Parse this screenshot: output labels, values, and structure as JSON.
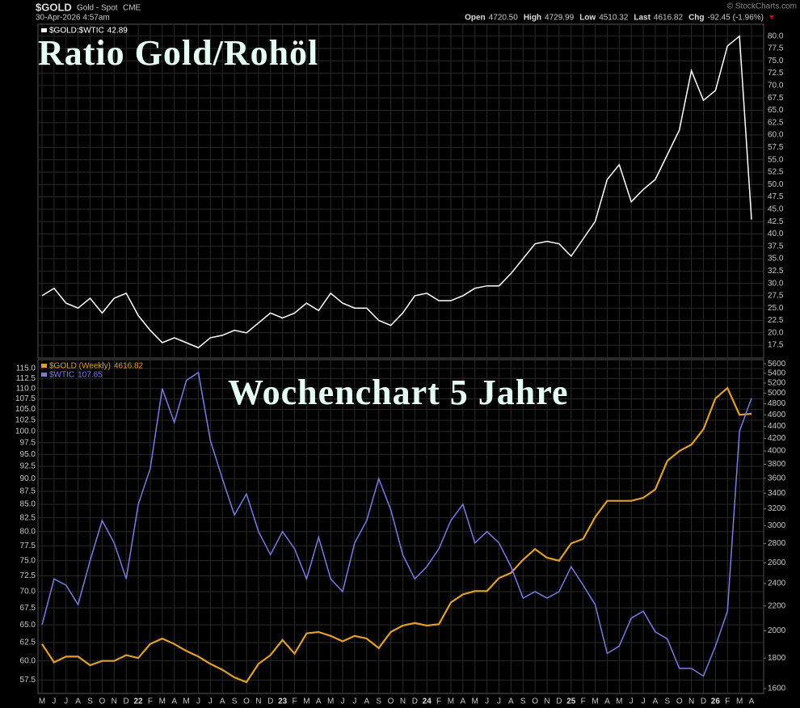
{
  "header": {
    "symbol": "$GOLD",
    "name": "Gold - Spot",
    "exchange": "CME",
    "date": "30-Apr-2026 4:57am",
    "source": "© StockCharts.com",
    "fields": [
      {
        "label": "Open",
        "value": "4720.50"
      },
      {
        "label": "High",
        "value": "4729.99"
      },
      {
        "label": "Low",
        "value": "4510.32"
      },
      {
        "label": "Last",
        "value": "4616.82"
      },
      {
        "label": "Chg",
        "value": "-92.45 (-1.96%)"
      }
    ]
  },
  "chart_data": [
    {
      "type": "line",
      "title": "Ratio Gold/Rohöl",
      "series": [
        {
          "name": "$GOLD:$WTIC",
          "color": "#ffffff",
          "values": [
            27.5,
            29,
            26,
            25,
            27,
            24,
            27,
            28,
            23.5,
            20.5,
            18,
            19,
            18,
            17,
            19,
            19.5,
            20.5,
            20,
            22,
            24,
            23,
            24,
            26,
            24.5,
            28,
            26,
            25,
            25,
            22.5,
            21.5,
            24,
            27.5,
            28,
            26.5,
            26.5,
            27.5,
            29,
            29.5,
            29.5,
            32,
            35,
            38,
            38.5,
            38,
            35.5,
            39,
            42.5,
            51,
            54,
            46.5,
            49,
            51,
            56,
            61,
            73,
            67,
            69,
            78,
            80,
            42.89
          ]
        }
      ],
      "ylim": [
        14.9,
        82.4
      ],
      "yticks": [
        17.5,
        {
          "value": 20,
          "label": "20.0"
        },
        22.5,
        {
          "value": 25,
          "label": "25.0"
        },
        27.5,
        {
          "value": 30,
          "label": "30.0"
        },
        32.5,
        {
          "value": 35,
          "label": "35.0"
        },
        37.5,
        {
          "value": 40,
          "label": "40.0"
        },
        42.5,
        {
          "value": 45,
          "label": "45.0"
        },
        47.5,
        {
          "value": 50,
          "label": "50.0"
        },
        52.5,
        {
          "value": 55,
          "label": "55.0"
        },
        57.5,
        {
          "value": 60,
          "label": "60.0"
        },
        62.5,
        {
          "value": 65,
          "label": "65.0"
        },
        67.5,
        {
          "value": 70,
          "label": "70.0"
        },
        72.5,
        {
          "value": 75,
          "label": "75.0"
        },
        77.5,
        {
          "value": 80,
          "label": "80.0"
        }
      ],
      "grid": true
    },
    {
      "type": "line",
      "title": "Wochenchart 5 Jahre",
      "categories": [
        "M",
        "J",
        "J",
        "A",
        "S",
        "O",
        "N",
        "D",
        "22",
        "F",
        "M",
        "A",
        "M",
        "J",
        "J",
        "A",
        "S",
        "O",
        "N",
        "D",
        "23",
        "F",
        "M",
        "A",
        "M",
        "J",
        "J",
        "A",
        "S",
        "O",
        "N",
        "D",
        "24",
        "F",
        "M",
        "A",
        "M",
        "J",
        "J",
        "A",
        "S",
        "O",
        "N",
        "D",
        "25",
        "F",
        "M",
        "A",
        "M",
        "J",
        "J",
        "A",
        "S",
        "O",
        "N",
        "D",
        "26",
        "F",
        "M",
        "A"
      ],
      "series": [
        {
          "name": "$GOLD (Weekly)",
          "color": "#e0a030",
          "axis": "y2",
          "values": [
            1900,
            1770,
            1810,
            1810,
            1750,
            1780,
            1780,
            1820,
            1800,
            1900,
            1940,
            1900,
            1850,
            1810,
            1760,
            1720,
            1670,
            1640,
            1760,
            1820,
            1930,
            1830,
            1980,
            1990,
            1960,
            1920,
            1960,
            1940,
            1870,
            1990,
            2040,
            2060,
            2040,
            2050,
            2230,
            2300,
            2330,
            2330,
            2450,
            2500,
            2630,
            2740,
            2650,
            2620,
            2800,
            2850,
            3100,
            3300,
            3300,
            3300,
            3340,
            3450,
            3850,
            4000,
            4100,
            4350,
            4900,
            5100,
            4600,
            4616.82
          ]
        },
        {
          "name": "$WTIC",
          "color": "#7b7be0",
          "values": [
            65,
            72,
            71,
            68,
            75,
            82,
            78,
            72,
            85,
            92,
            110,
            102,
            112,
            114,
            98,
            90,
            83,
            87,
            80,
            76,
            80,
            77,
            72,
            79,
            72,
            70,
            78,
            82,
            90,
            84,
            76,
            72,
            74,
            77,
            82,
            85,
            78,
            80,
            78,
            74,
            69,
            70,
            69,
            70,
            74,
            71,
            68,
            61,
            62,
            66,
            67,
            64,
            63,
            59,
            59,
            58,
            62,
            67,
            100,
            107.65
          ]
        }
      ],
      "yscale": "log",
      "ylim": [
        55.8,
        117.3
      ],
      "yticks": [
        57.5,
        {
          "value": 60,
          "label": "60.0"
        },
        62.5,
        {
          "value": 65,
          "label": "65.0"
        },
        67.5,
        {
          "value": 70,
          "label": "70.0"
        },
        72.5,
        {
          "value": 75,
          "label": "75.0"
        },
        77.5,
        {
          "value": 80,
          "label": "80.0"
        },
        82.5,
        {
          "value": 85,
          "label": "85.0"
        },
        87.5,
        {
          "value": 90,
          "label": "90.0"
        },
        92.5,
        {
          "value": 95,
          "label": "95.0"
        },
        97.5,
        {
          "value": 100,
          "label": "100.0"
        },
        102.5,
        {
          "value": 105,
          "label": "105.0"
        },
        107.5,
        {
          "value": 110,
          "label": "110.0"
        },
        112.5,
        {
          "value": 115,
          "label": "115.0"
        }
      ],
      "y2lim": [
        1570,
        5690
      ],
      "y2ticks": [
        1600,
        1800,
        2000,
        2200,
        2400,
        2600,
        2800,
        3000,
        3200,
        3400,
        3600,
        3800,
        4000,
        4200,
        4400,
        4600,
        4800,
        5000,
        5200,
        5400,
        5600
      ],
      "grid": true
    }
  ]
}
